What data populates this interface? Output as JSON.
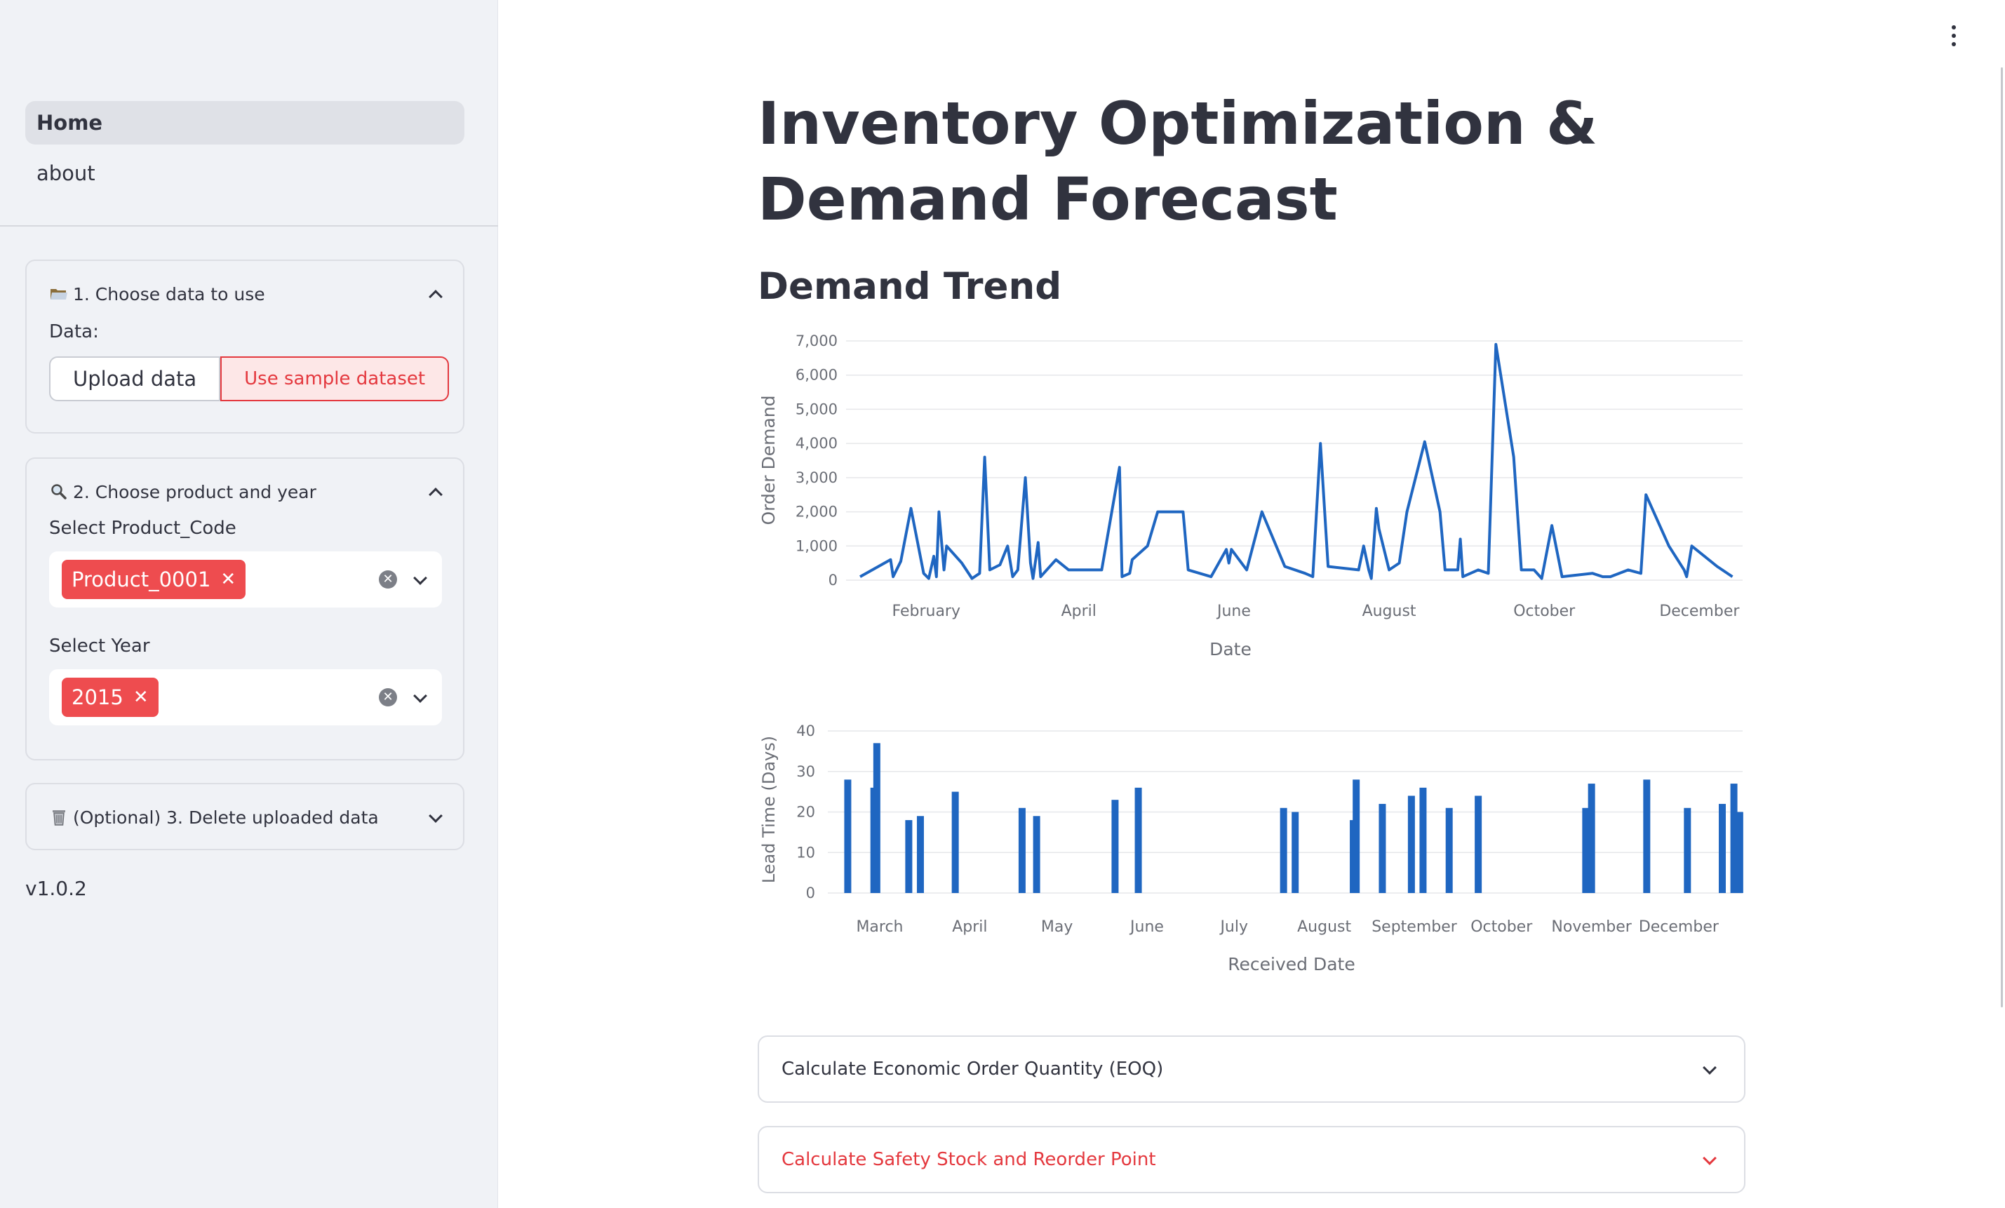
{
  "sidebar": {
    "nav": [
      {
        "label": "Home",
        "active": true
      },
      {
        "label": "about",
        "active": false
      }
    ],
    "sections": [
      {
        "icon": "folder-icon",
        "title": "1. Choose data to use",
        "expanded": true,
        "data_label": "Data:",
        "options": [
          "Upload data",
          "Use sample dataset"
        ],
        "selected": "Use sample dataset"
      },
      {
        "icon": "magnifier-icon",
        "title": "2. Choose product and year",
        "expanded": true,
        "product_label": "Select Product_Code",
        "product_value": "Product_0001",
        "year_label": "Select Year",
        "year_value": "2015"
      },
      {
        "icon": "trash-icon",
        "title": "(Optional) 3. Delete uploaded data",
        "expanded": false
      }
    ],
    "version": "v1.0.2"
  },
  "main": {
    "title": "Inventory Optimization & Demand Forecast",
    "subtitle": "Demand Trend",
    "expanders": [
      {
        "title": "Calculate Economic Order Quantity (EOQ)",
        "accent": false
      },
      {
        "title": "Calculate Safety Stock and Reorder Point",
        "accent": true
      }
    ]
  },
  "colors": {
    "accent": "#e4383e",
    "series": "#1f66c1",
    "sidebar_bg": "#f0f2f6"
  },
  "chart_data": [
    {
      "type": "line",
      "xlabel": "Date",
      "ylabel": "Order Demand",
      "ylim": [
        0,
        7000
      ],
      "yticks": [
        "0",
        "1,000",
        "2,000",
        "3,000",
        "4,000",
        "5,000",
        "6,000",
        "7,000"
      ],
      "ytick_values": [
        0,
        1000,
        2000,
        3000,
        4000,
        5000,
        6000,
        7000
      ],
      "xticks": [
        "February",
        "April",
        "June",
        "August",
        "October",
        "December"
      ],
      "xtick_days": [
        31,
        91,
        152,
        213,
        274,
        335
      ],
      "xlim_days": [
        5,
        352
      ],
      "series": [
        {
          "points": [
            [
              5,
              100
            ],
            [
              17,
              600
            ],
            [
              18,
              100
            ],
            [
              21,
              550
            ],
            [
              25,
              2100
            ],
            [
              30,
              200
            ],
            [
              32,
              50
            ],
            [
              34,
              700
            ],
            [
              35,
              100
            ],
            [
              36,
              2000
            ],
            [
              38,
              300
            ],
            [
              39,
              1000
            ],
            [
              45,
              500
            ],
            [
              49,
              50
            ],
            [
              52,
              200
            ],
            [
              54,
              3600
            ],
            [
              56,
              300
            ],
            [
              60,
              450
            ],
            [
              63,
              1000
            ],
            [
              65,
              100
            ],
            [
              67,
              300
            ],
            [
              70,
              3000
            ],
            [
              72,
              500
            ],
            [
              73,
              50
            ],
            [
              75,
              1100
            ],
            [
              76,
              100
            ],
            [
              82,
              600
            ],
            [
              87,
              300
            ],
            [
              100,
              300
            ],
            [
              107,
              3300
            ],
            [
              108,
              100
            ],
            [
              111,
              200
            ],
            [
              112,
              600
            ],
            [
              118,
              1000
            ],
            [
              122,
              2000
            ],
            [
              132,
              2000
            ],
            [
              134,
              300
            ],
            [
              143,
              100
            ],
            [
              149,
              900
            ],
            [
              150,
              500
            ],
            [
              151,
              900
            ],
            [
              157,
              300
            ],
            [
              163,
              2000
            ],
            [
              172,
              400
            ],
            [
              180,
              200
            ],
            [
              183,
              100
            ],
            [
              186,
              4000
            ],
            [
              189,
              400
            ],
            [
              201,
              300
            ],
            [
              203,
              1000
            ],
            [
              205,
              300
            ],
            [
              206,
              50
            ],
            [
              208,
              2100
            ],
            [
              209,
              1500
            ],
            [
              213,
              300
            ],
            [
              217,
              500
            ],
            [
              220,
              2000
            ],
            [
              227,
              4050
            ],
            [
              233,
              2000
            ],
            [
              235,
              300
            ],
            [
              240,
              300
            ],
            [
              241,
              1200
            ],
            [
              242,
              100
            ],
            [
              248,
              300
            ],
            [
              252,
              200
            ],
            [
              255,
              6900
            ],
            [
              262,
              3600
            ],
            [
              265,
              300
            ],
            [
              270,
              300
            ],
            [
              273,
              50
            ],
            [
              277,
              1600
            ],
            [
              281,
              100
            ],
            [
              293,
              200
            ],
            [
              297,
              100
            ],
            [
              300,
              100
            ],
            [
              307,
              300
            ],
            [
              312,
              200
            ],
            [
              314,
              2500
            ],
            [
              323,
              1000
            ],
            [
              329,
              300
            ],
            [
              330,
              100
            ],
            [
              332,
              1000
            ],
            [
              342,
              400
            ],
            [
              344,
              300
            ],
            [
              348,
              100
            ]
          ]
        }
      ]
    },
    {
      "type": "bar",
      "xlabel": "Received Date",
      "ylabel": "Lead Time (Days)",
      "ylim": [
        0,
        40
      ],
      "yticks": [
        "0",
        "10",
        "20",
        "30",
        "40"
      ],
      "ytick_values": [
        0,
        10,
        20,
        30,
        40
      ],
      "xticks": [
        "March",
        "April",
        "May",
        "June",
        "July",
        "August",
        "September",
        "October",
        "November",
        "December"
      ],
      "xtick_days": [
        60,
        91,
        121,
        152,
        182,
        213,
        244,
        274,
        305,
        335
      ],
      "xlim_days": [
        46,
        357
      ],
      "series": [
        {
          "points": [
            [
              49,
              28
            ],
            [
              58,
              26
            ],
            [
              59,
              37
            ],
            [
              70,
              18
            ],
            [
              74,
              19
            ],
            [
              86,
              25
            ],
            [
              109,
              21
            ],
            [
              114,
              19
            ],
            [
              141,
              23
            ],
            [
              149,
              26
            ],
            [
              199,
              21
            ],
            [
              203,
              20
            ],
            [
              223,
              18
            ],
            [
              224,
              28
            ],
            [
              233,
              22
            ],
            [
              243,
              24
            ],
            [
              247,
              26
            ],
            [
              256,
              21
            ],
            [
              266,
              24
            ],
            [
              303,
              21
            ],
            [
              305,
              27
            ],
            [
              324,
              28
            ],
            [
              338,
              21
            ],
            [
              350,
              22
            ],
            [
              354,
              27
            ],
            [
              356,
              20
            ]
          ]
        }
      ]
    }
  ]
}
